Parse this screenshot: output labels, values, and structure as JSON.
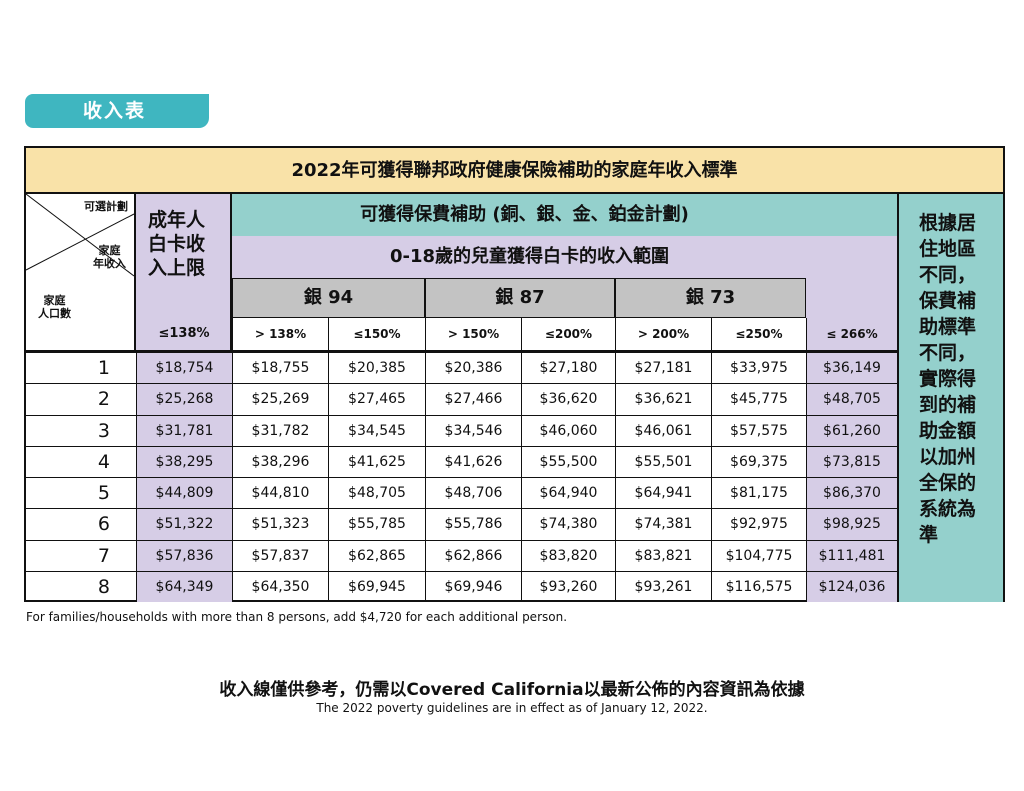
{
  "tab_label": "收入表",
  "table_title": "2022年可獲得聯邦政府健康保險補助的家庭年收入標準",
  "corner": {
    "plan": "可選計劃",
    "income": "家庭\n年收入",
    "household": "家庭\n人口數"
  },
  "adult_header": "成年人\n白卡收\n入上限",
  "adult_threshold": "≤138%",
  "subsidy_header": "可獲得保費補助 (銅、銀、金、鉑金計劃)",
  "children_header": "0-18歲的兒童獲得白卡的收入範圍",
  "tiers": [
    "銀 94",
    "銀 87",
    "銀 73"
  ],
  "thresholds": [
    "> 138%",
    "≤150%",
    "> 150%",
    "≤200%",
    "> 200%",
    "≤250%",
    "≤ 266%"
  ],
  "note": "根據居\n住地區\n不同，\n保費補\n助標準\n不同，\n實際得\n到的補\n助金額\n以加州\n全保的\n系統為\n準",
  "rows": [
    {
      "n": "1",
      "v": [
        "$18,754",
        "$18,755",
        "$20,385",
        "$20,386",
        "$27,180",
        "$27,181",
        "$33,975",
        "$36,149"
      ]
    },
    {
      "n": "2",
      "v": [
        "$25,268",
        "$25,269",
        "$27,465",
        "$27,466",
        "$36,620",
        "$36,621",
        "$45,775",
        "$48,705"
      ]
    },
    {
      "n": "3",
      "v": [
        "$31,781",
        "$31,782",
        "$34,545",
        "$34,546",
        "$46,060",
        "$46,061",
        "$57,575",
        "$61,260"
      ]
    },
    {
      "n": "4",
      "v": [
        "$38,295",
        "$38,296",
        "$41,625",
        "$41,626",
        "$55,500",
        "$55,501",
        "$69,375",
        "$73,815"
      ]
    },
    {
      "n": "5",
      "v": [
        "$44,809",
        "$44,810",
        "$48,705",
        "$48,706",
        "$64,940",
        "$64,941",
        "$81,175",
        "$86,370"
      ]
    },
    {
      "n": "6",
      "v": [
        "$51,322",
        "$51,323",
        "$55,785",
        "$55,786",
        "$74,380",
        "$74,381",
        "$92,975",
        "$98,925"
      ]
    },
    {
      "n": "7",
      "v": [
        "$57,836",
        "$57,837",
        "$62,865",
        "$62,866",
        "$83,820",
        "$83,821",
        "$104,775",
        "$111,481"
      ]
    },
    {
      "n": "8",
      "v": [
        "$64,349",
        "$64,350",
        "$69,945",
        "$69,946",
        "$93,260",
        "$93,261",
        "$116,575",
        "$124,036"
      ]
    }
  ],
  "footnote": "For families/households with more than 8 persons, add $4,720 for each additional person.",
  "footer_zh": "收入線僅供參考，仍需以Covered California以最新公佈的內容資訊為依據",
  "footer_en": "The 2022 poverty guidelines are in effect as of January 12, 2022.",
  "colors": {
    "title_bg": "#f9e2a8",
    "teal": "#94d0cc",
    "lavender": "#d6cde6",
    "tier_gray": "#c3c3c3",
    "tab": "#3fb6c0"
  }
}
